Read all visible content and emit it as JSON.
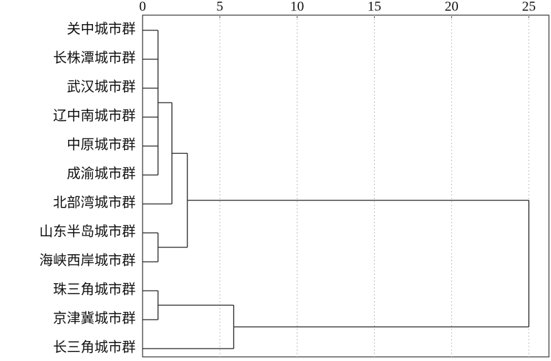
{
  "chart_data": {
    "type": "dendrogram",
    "leaves": [
      "关中城市群",
      "长株潭城市群",
      "武汉城市群",
      "辽中南城市群",
      "中原城市群",
      "成渝城市群",
      "北部湾城市群",
      "山东半岛城市群",
      "海峡西岸城市群",
      "珠三角城市群",
      "京津冀城市群",
      "长三角城市群"
    ],
    "merges": [
      {
        "children": [
          0,
          1,
          2,
          3,
          4,
          5
        ],
        "height": 1
      },
      {
        "children": [
          7,
          8
        ],
        "height": 1
      },
      {
        "children": [
          9,
          10
        ],
        "height": 1
      },
      {
        "children": [
          12,
          6
        ],
        "height": 1.9
      },
      {
        "children": [
          15,
          13
        ],
        "height": 2.9
      },
      {
        "children": [
          14,
          11
        ],
        "height": 5.9
      },
      {
        "children": [
          16,
          17
        ],
        "height": 25
      }
    ],
    "xlim": [
      0,
      26.3
    ],
    "xticks": [
      0,
      5,
      10,
      15,
      20,
      25
    ],
    "grid": true
  }
}
